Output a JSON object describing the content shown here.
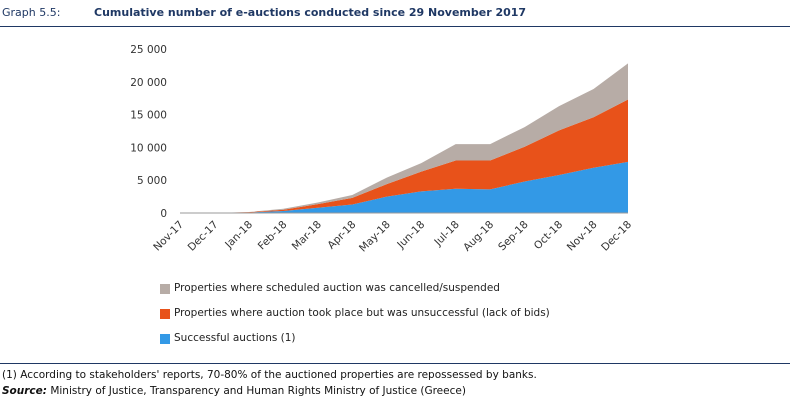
{
  "header": {
    "graph_number": "Graph 5.5:",
    "title": "Cumulative number of e-auctions conducted since 29 November 2017"
  },
  "chart_data": {
    "type": "area",
    "stacked": true,
    "title": "Cumulative number of e-auctions conducted since 29 November 2017",
    "categories": [
      "Nov-17",
      "Dec-17",
      "Jan-18",
      "Feb-18",
      "Mar-18",
      "Apr-18",
      "May-18",
      "Jun-18",
      "Jul-18",
      "Aug-18",
      "Sep-18",
      "Oct-18",
      "Nov-18",
      "Dec-18"
    ],
    "ylim": [
      0,
      25000
    ],
    "yticks": [
      0,
      5000,
      10000,
      15000,
      20000,
      25000
    ],
    "ytick_labels": [
      "0",
      "5 000",
      "10 000",
      "15 000",
      "20 000",
      "25 000"
    ],
    "series": [
      {
        "name": "Successful auctions (1)",
        "color": "#3399e6",
        "values": [
          0,
          0,
          80,
          300,
          800,
          1300,
          2500,
          3300,
          3700,
          3600,
          4800,
          5800,
          6900,
          7800
        ]
      },
      {
        "name": "Properties where auction took place but was unsuccessful (lack of bids)",
        "color": "#e8521a",
        "values": [
          0,
          0,
          50,
          200,
          550,
          1000,
          1900,
          3000,
          4300,
          4400,
          5300,
          6800,
          7700,
          9500
        ]
      },
      {
        "name": "Properties where scheduled auction was cancelled/suspended",
        "color": "#b7aca6",
        "values": [
          0,
          0,
          20,
          150,
          250,
          450,
          1000,
          1300,
          2500,
          2500,
          3000,
          3700,
          4300,
          5500
        ]
      }
    ],
    "legend_position": "bottom",
    "grid": false
  },
  "legend": [
    {
      "label": "Properties where scheduled auction was cancelled/suspended",
      "color": "#b7aca6"
    },
    {
      "label": "Properties where auction took place but was unsuccessful (lack of bids)",
      "color": "#e8521a"
    },
    {
      "label": "Successful auctions (1)",
      "color": "#3399e6"
    }
  ],
  "footnote": "(1) According to stakeholders' reports, 70-80% of the auctioned properties are repossessed by banks.",
  "source": {
    "label": "Source:",
    "text": " Ministry of Justice, Transparency and Human Rights Ministry of Justice (Greece)"
  }
}
